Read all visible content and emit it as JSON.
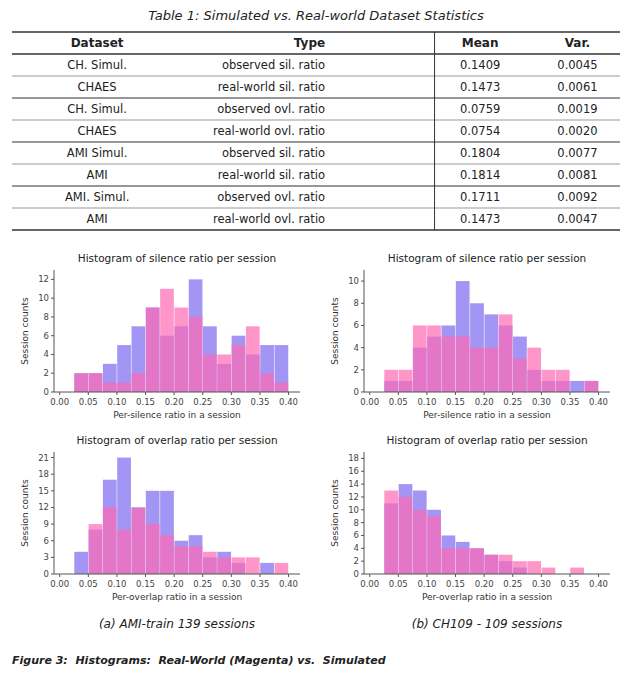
{
  "chart_data": [
    {
      "type": "table",
      "title": "Table 1: Simulated vs. Real-world Dataset Statistics",
      "columns": [
        "Dataset",
        "Type",
        "Mean",
        "Var."
      ],
      "rows": [
        [
          "CH. Simul.",
          "observed sil. ratio",
          "0.1409",
          "0.0045"
        ],
        [
          "CHAES",
          "real-world sil. ratio",
          "0.1473",
          "0.0061"
        ],
        [
          "CH. Simul.",
          "observed ovl. ratio",
          "0.0759",
          "0.0019"
        ],
        [
          "CHAES",
          "real-world ovl. ratio",
          "0.0754",
          "0.0020"
        ],
        [
          "AMI Simul.",
          "observed sil. ratio",
          "0.1804",
          "0.0077"
        ],
        [
          "AMI",
          "real-world sil. ratio",
          "0.1814",
          "0.0081"
        ],
        [
          "AMI. Simul.",
          "observed ovl. ratio",
          "0.1711",
          "0.0092"
        ],
        [
          "AMI",
          "real-world ovl. ratio",
          "0.1473",
          "0.0047"
        ]
      ]
    },
    {
      "type": "histogram",
      "title": "Histogram of silence ratio per session",
      "x_label": "Per-silence ratio in a session",
      "y_label": "Session counts",
      "bins": [
        0.0,
        0.025,
        0.05,
        0.075,
        0.1,
        0.125,
        0.15,
        0.175,
        0.2,
        0.225,
        0.25,
        0.275,
        0.3,
        0.325,
        0.35,
        0.375,
        0.4
      ],
      "series": [
        {
          "color": "#7B68EE",
          "values": [
            0,
            2,
            2,
            3,
            5,
            7,
            9,
            6,
            7,
            12,
            7,
            3,
            6,
            4,
            5,
            5
          ]
        },
        {
          "color": "#FF69B4",
          "values": [
            0,
            2,
            2,
            1,
            1,
            2,
            9,
            11,
            9,
            8,
            4,
            4,
            5,
            7,
            2,
            1
          ]
        }
      ],
      "xlim": [
        -0.01,
        0.42
      ],
      "xticks": [
        {
          "value": 0.0,
          "label": "0.00"
        },
        0.05,
        {
          "value": 0.1,
          "label": "0.10"
        },
        0.15,
        {
          "value": 0.2,
          "label": "0.20"
        },
        0.25,
        {
          "value": 0.3,
          "label": "0.30"
        },
        0.35,
        {
          "value": 0.4,
          "label": "0.40"
        }
      ],
      "ylim": [
        0,
        13
      ],
      "yticks": [
        0,
        2,
        4,
        6,
        8,
        10,
        12
      ],
      "grid": false
    },
    {
      "type": "histogram",
      "title": "Histogram of silence ratio per session",
      "x_label": "Per-silence ratio in a session",
      "y_label": "Session counts",
      "bins": [
        0.0,
        0.025,
        0.05,
        0.075,
        0.1,
        0.125,
        0.15,
        0.175,
        0.2,
        0.225,
        0.25,
        0.275,
        0.3,
        0.325,
        0.35,
        0.375,
        0.4
      ],
      "series": [
        {
          "color": "#7B68EE",
          "values": [
            0,
            1,
            1,
            4,
            5,
            6,
            10,
            8,
            7,
            6,
            5,
            2,
            1,
            1,
            1,
            1
          ]
        },
        {
          "color": "#FF69B4",
          "values": [
            0,
            2,
            2,
            6,
            6,
            5,
            5,
            4,
            4,
            7,
            3,
            4,
            2,
            2,
            0,
            1
          ]
        }
      ],
      "xlim": [
        -0.01,
        0.42
      ],
      "xticks": [
        {
          "value": 0.0,
          "label": "0.00"
        },
        0.05,
        {
          "value": 0.1,
          "label": "0.10"
        },
        0.15,
        {
          "value": 0.2,
          "label": "0.20"
        },
        0.25,
        {
          "value": 0.3,
          "label": "0.30"
        },
        0.35,
        {
          "value": 0.4,
          "label": "0.40"
        }
      ],
      "ylim": [
        0,
        11
      ],
      "yticks": [
        0,
        2,
        4,
        6,
        8,
        10
      ],
      "grid": false
    },
    {
      "type": "histogram",
      "title": "Histogram of overlap ratio per session",
      "x_label": "Per-overlap ratio in a session",
      "y_label": "Session counts",
      "bins": [
        0.0,
        0.025,
        0.05,
        0.075,
        0.1,
        0.125,
        0.15,
        0.175,
        0.2,
        0.225,
        0.25,
        0.275,
        0.3,
        0.325,
        0.35,
        0.375,
        0.4
      ],
      "series": [
        {
          "color": "#7B68EE",
          "values": [
            0,
            4,
            8,
            17,
            21,
            12,
            15,
            15,
            6,
            7,
            3,
            4,
            2,
            0,
            2,
            0
          ]
        },
        {
          "color": "#FF69B4",
          "values": [
            0,
            0,
            9,
            12,
            8,
            12,
            9,
            7,
            5,
            5,
            4,
            3,
            3,
            3,
            0,
            2
          ]
        }
      ],
      "xlim": [
        -0.01,
        0.42
      ],
      "xticks": [
        {
          "value": 0.0,
          "label": "0.00"
        },
        0.05,
        {
          "value": 0.1,
          "label": "0.10"
        },
        0.15,
        {
          "value": 0.2,
          "label": "0.20"
        },
        0.25,
        {
          "value": 0.3,
          "label": "0.30"
        },
        0.35,
        {
          "value": 0.4,
          "label": "0.40"
        }
      ],
      "ylim": [
        0,
        22
      ],
      "yticks": [
        0,
        3,
        6,
        9,
        12,
        15,
        18,
        21
      ],
      "grid": false
    },
    {
      "type": "histogram",
      "title": "Histogram of overlap ratio per session",
      "x_label": "Per-overlap ratio in a session",
      "y_label": "Session counts",
      "bins": [
        0.0,
        0.025,
        0.05,
        0.075,
        0.1,
        0.125,
        0.15,
        0.175,
        0.2,
        0.225,
        0.25,
        0.275,
        0.3,
        0.325,
        0.35,
        0.375,
        0.4
      ],
      "series": [
        {
          "color": "#7B68EE",
          "values": [
            0,
            11,
            14,
            13,
            10,
            6,
            5,
            4,
            3,
            2,
            1,
            0,
            0,
            0,
            0,
            0
          ]
        },
        {
          "color": "#FF69B4",
          "values": [
            0,
            13,
            12,
            10,
            9,
            4,
            4,
            4,
            3,
            3,
            2,
            2,
            1,
            0,
            1,
            0
          ]
        }
      ],
      "xlim": [
        -0.01,
        0.42
      ],
      "xticks": [
        {
          "value": 0.0,
          "label": "0.00"
        },
        0.05,
        {
          "value": 0.1,
          "label": "0.10"
        },
        0.15,
        {
          "value": 0.2,
          "label": "0.20"
        },
        0.25,
        {
          "value": 0.3,
          "label": "0.30"
        },
        0.35,
        {
          "value": 0.4,
          "label": "0.40"
        }
      ],
      "ylim": [
        0,
        19
      ],
      "yticks": [
        0,
        2,
        4,
        6,
        8,
        10,
        12,
        14,
        16,
        18
      ],
      "grid": false
    }
  ],
  "annotations": [
    "(a) AMI-train 139 sessions",
    "(b) CH109 - 109 sessions",
    "Figure 3:  Histograms:  Real-World (Magenta) vs.  Simulated"
  ]
}
